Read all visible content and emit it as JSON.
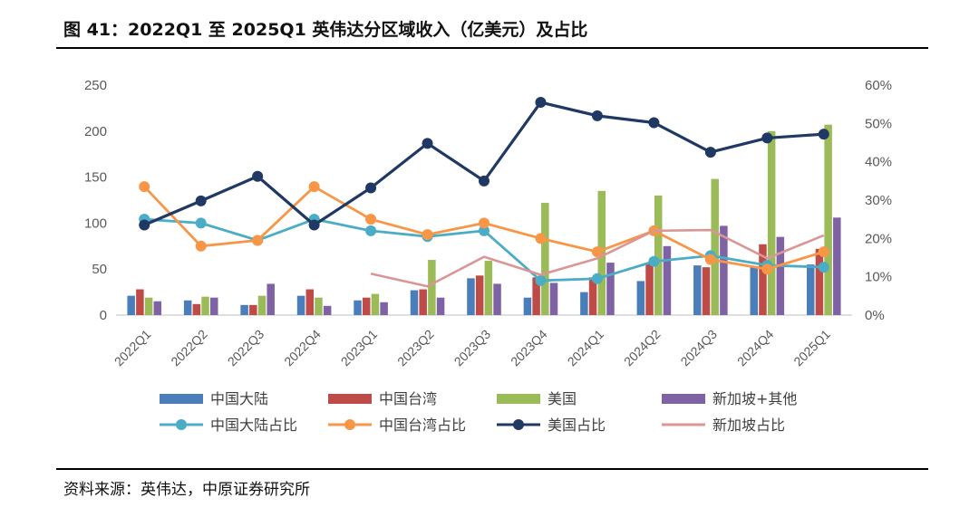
{
  "title": "图 41：2022Q1 至 2025Q1  英伟达分区域收入（亿美元）及占比",
  "source": "资料来源：英伟达，中原证券研究所",
  "chart_data": {
    "type": "bar+line",
    "categories": [
      "2022Q1",
      "2022Q2",
      "2022Q3",
      "2022Q4",
      "2023Q1",
      "2023Q2",
      "2023Q3",
      "2023Q4",
      "2024Q1",
      "2024Q2",
      "2024Q3",
      "2024Q4",
      "2025Q1"
    ],
    "y_left": {
      "min": 0,
      "max": 250,
      "ticks": [
        "0",
        "50",
        "100",
        "150",
        "200",
        "250"
      ]
    },
    "y_right": {
      "min": 0,
      "max": 0.6,
      "ticks": [
        "0%",
        "10%",
        "20%",
        "30%",
        "40%",
        "50%",
        "60%"
      ]
    },
    "bar_series": [
      {
        "name": "中国大陆",
        "color": "#4a7ebb",
        "values": [
          21,
          16,
          11,
          21,
          16,
          27,
          40,
          19,
          25,
          37,
          54,
          52,
          55
        ]
      },
      {
        "name": "中国台湾",
        "color": "#be4b48",
        "values": [
          28,
          12,
          11,
          28,
          19,
          28,
          43,
          41,
          41,
          57,
          52,
          77,
          72
        ]
      },
      {
        "name": "美国",
        "color": "#9bbb59",
        "values": [
          19,
          20,
          21,
          19,
          23,
          60,
          59,
          122,
          135,
          130,
          148,
          200,
          207
        ]
      },
      {
        "name": "新加坡+其他",
        "color": "#7f62a3",
        "values": [
          15,
          19,
          34,
          10,
          14,
          19,
          34,
          35,
          57,
          75,
          97,
          85,
          106
        ]
      }
    ],
    "line_series": [
      {
        "name": "中国大陆占比",
        "color": "#4bacc6",
        "marker": true,
        "values": [
          0.25,
          0.24,
          0.195,
          0.25,
          0.22,
          0.205,
          0.22,
          0.09,
          0.095,
          0.14,
          0.155,
          0.13,
          0.125
        ]
      },
      {
        "name": "中国台湾占比",
        "color": "#f79646",
        "marker": true,
        "values": [
          0.335,
          0.18,
          0.195,
          0.335,
          0.25,
          0.21,
          0.24,
          0.2,
          0.165,
          0.22,
          0.145,
          0.12,
          0.165
        ]
      },
      {
        "name": "美国占比",
        "color": "#1f3864",
        "marker": true,
        "values": [
          0.235,
          0.298,
          0.362,
          0.235,
          0.332,
          0.448,
          0.35,
          0.555,
          0.52,
          0.502,
          0.425,
          0.462,
          0.472
        ]
      },
      {
        "name": "新加坡占比",
        "color": "#d99694",
        "marker": false,
        "values": [
          null,
          null,
          null,
          null,
          0.108,
          0.075,
          0.152,
          0.105,
          0.148,
          0.22,
          0.222,
          0.148,
          0.208
        ]
      }
    ],
    "legend": {
      "row1": [
        "中国大陆",
        "中国台湾",
        "美国",
        "新加坡+其他"
      ],
      "row2": [
        "中国大陆占比",
        "中国台湾占比",
        "美国占比",
        "新加坡占比"
      ],
      "placement": "bottom"
    }
  }
}
